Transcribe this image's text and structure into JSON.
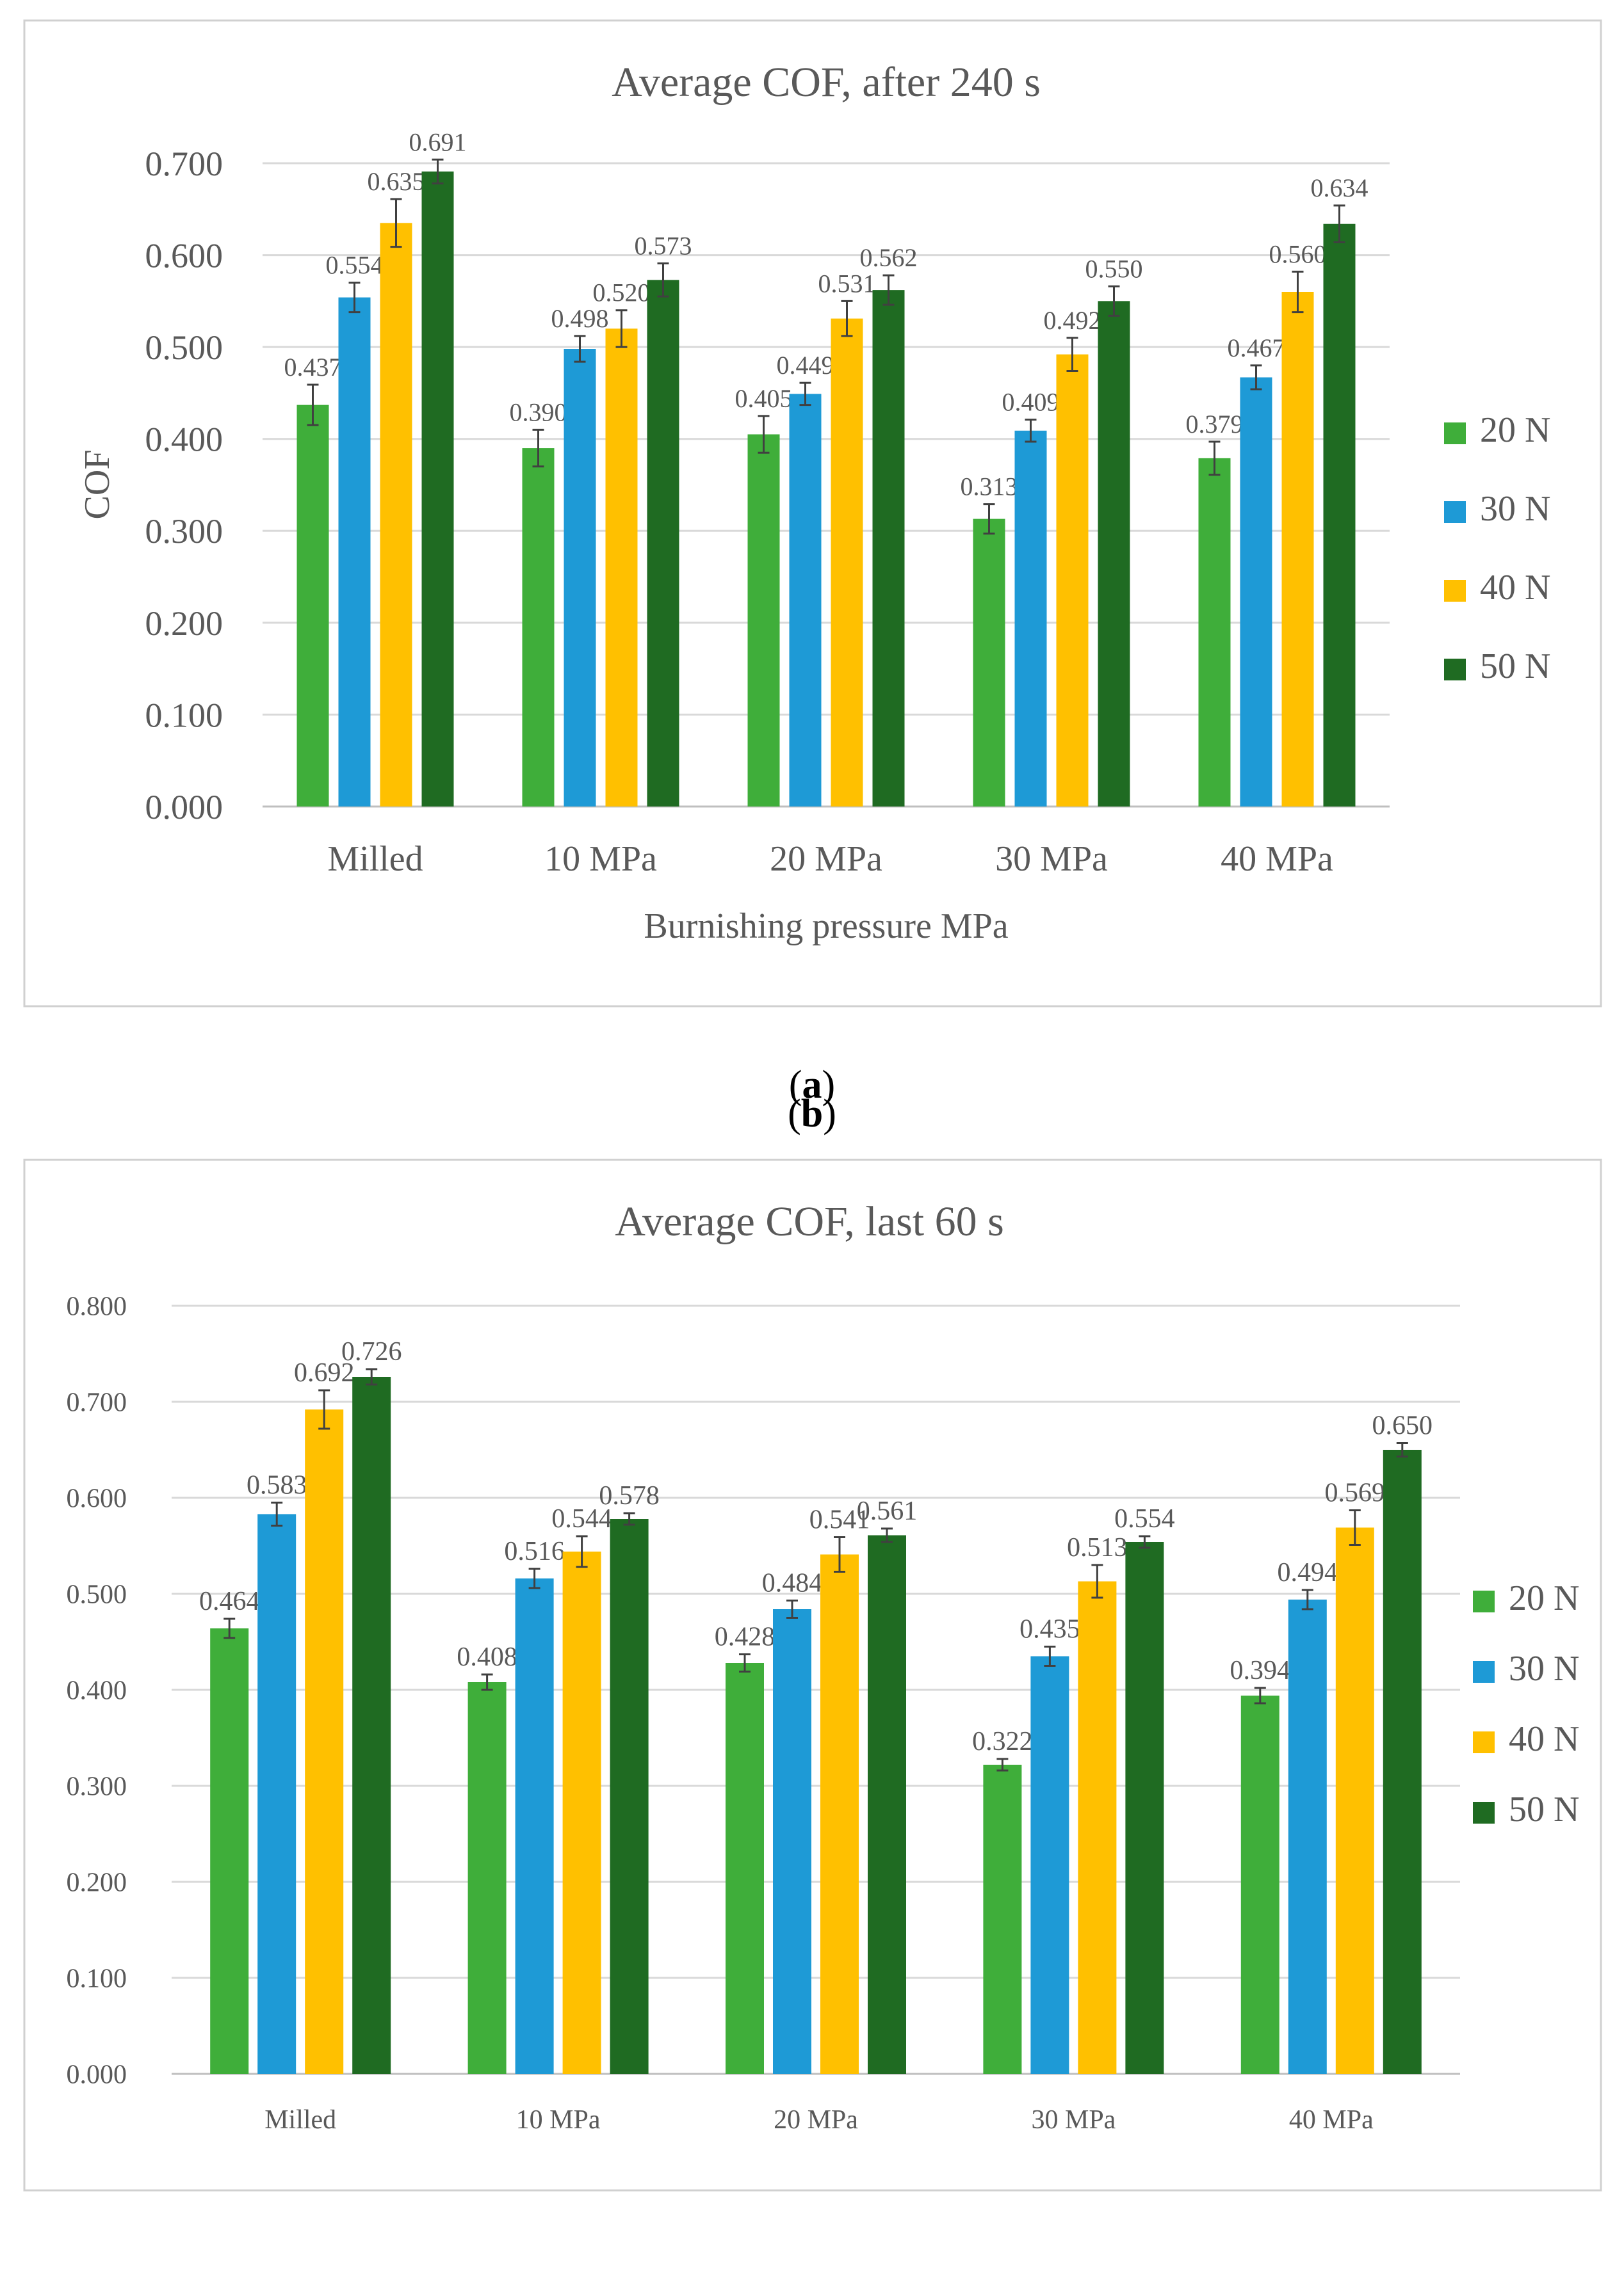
{
  "colors": {
    "s20": "#3FAE3A",
    "s30": "#1E9AD6",
    "s40": "#FFC000",
    "s50": "#1F6B22",
    "grid": "#D9D9D9",
    "text": "#595959",
    "err": "#404040",
    "frame": "#D0D0D0"
  },
  "chart_data": [
    {
      "type": "bar",
      "title": "Average COF, after 240 s",
      "xlabel": "Burnishing pressure MPa",
      "ylabel": "COF",
      "ylim": [
        0,
        0.7
      ],
      "yticks": [
        "0.000",
        "0.100",
        "0.200",
        "0.300",
        "0.400",
        "0.500",
        "0.600",
        "0.700"
      ],
      "categories": [
        "Milled",
        "10 MPa",
        "20 MPa",
        "30 MPa",
        "40 MPa"
      ],
      "legend_position": "right",
      "series": [
        {
          "name": "20 N",
          "values": [
            0.437,
            0.39,
            0.405,
            0.313,
            0.379
          ],
          "labels": [
            "0.437",
            "0.390",
            "0.405",
            "0.313",
            "0.379"
          ],
          "errors": [
            0.022,
            0.02,
            0.02,
            0.016,
            0.018
          ]
        },
        {
          "name": "30 N",
          "values": [
            0.554,
            0.498,
            0.449,
            0.409,
            0.467
          ],
          "labels": [
            "0.554",
            "0.498",
            "0.449",
            "0.409",
            "0.467"
          ],
          "errors": [
            0.016,
            0.014,
            0.012,
            0.012,
            0.013
          ]
        },
        {
          "name": "40 N",
          "values": [
            0.635,
            0.52,
            0.531,
            0.492,
            0.56
          ],
          "labels": [
            "0.635",
            "0.520",
            "0.531",
            "0.492",
            "0.560"
          ],
          "errors": [
            0.026,
            0.02,
            0.019,
            0.018,
            0.022
          ]
        },
        {
          "name": "50 N",
          "values": [
            0.691,
            0.573,
            0.562,
            0.55,
            0.634
          ],
          "labels": [
            "0.691",
            "0.573",
            "0.562",
            "0.550",
            "0.634"
          ],
          "errors": [
            0.013,
            0.018,
            0.016,
            0.016,
            0.02
          ]
        }
      ]
    },
    {
      "type": "bar",
      "title": "Average COF, last 60 s",
      "xlabel": "",
      "ylabel": "",
      "ylim": [
        0,
        0.8
      ],
      "yticks": [
        "0.000",
        "0.100",
        "0.200",
        "0.300",
        "0.400",
        "0.500",
        "0.600",
        "0.700",
        "0.800"
      ],
      "categories": [
        "Milled",
        "10 MPa",
        "20 MPa",
        "30 MPa",
        "40 MPa"
      ],
      "legend_position": "right",
      "series": [
        {
          "name": "20 N",
          "values": [
            0.464,
            0.408,
            0.428,
            0.322,
            0.394
          ],
          "labels": [
            "0.464",
            "0.408",
            "0.428",
            "0.322",
            "0.394"
          ],
          "errors": [
            0.01,
            0.008,
            0.009,
            0.006,
            0.008
          ]
        },
        {
          "name": "30 N",
          "values": [
            0.583,
            0.516,
            0.484,
            0.435,
            0.494
          ],
          "labels": [
            "0.583",
            "0.516",
            "0.484",
            "0.435",
            "0.494"
          ],
          "errors": [
            0.012,
            0.01,
            0.009,
            0.01,
            0.01
          ]
        },
        {
          "name": "40 N",
          "values": [
            0.692,
            0.544,
            0.541,
            0.513,
            0.569
          ],
          "labels": [
            "0.692",
            "0.544",
            "0.541",
            "0.513",
            "0.569"
          ],
          "errors": [
            0.02,
            0.016,
            0.018,
            0.017,
            0.018
          ]
        },
        {
          "name": "50 N",
          "values": [
            0.726,
            0.578,
            0.561,
            0.554,
            0.65
          ],
          "labels": [
            "0.726",
            "0.578",
            "0.561",
            "0.554",
            "0.650"
          ],
          "errors": [
            0.008,
            0.006,
            0.007,
            0.006,
            0.007
          ]
        }
      ]
    }
  ],
  "captions": {
    "a": "a",
    "b": "b"
  }
}
